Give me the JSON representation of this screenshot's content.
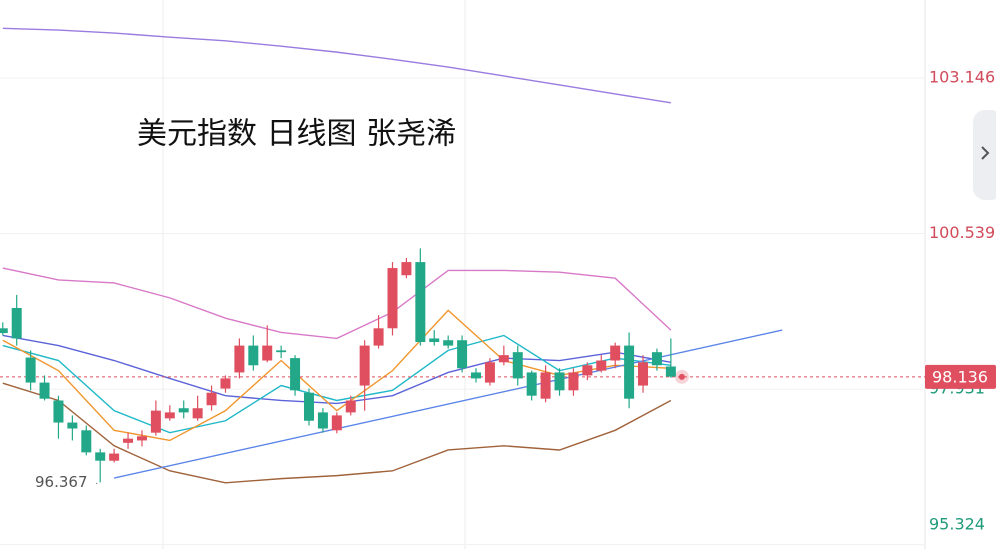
{
  "chart_data": {
    "type": "candlestick",
    "title": "美元指数 日线图 张尧浠",
    "ylim": [
      95.25,
      104.454
    ],
    "xlim": [
      -0.2,
      65.9
    ],
    "yticks": [
      103.146,
      100.539,
      97.931,
      95.324
    ],
    "last_price": 98.136,
    "low_label": 96.367,
    "up_color": "#e04f5f",
    "down_color": "#22a889",
    "open": [
      98.95,
      99.29,
      98.46,
      98.04,
      97.74,
      97.37,
      97.24,
      96.87,
      96.73,
      97.03,
      97.07,
      97.2,
      97.44,
      97.61,
      97.44,
      97.66,
      97.94,
      98.21,
      98.66,
      98.41,
      98.58,
      98.45,
      97.87,
      97.54,
      97.24,
      97.54,
      97.99,
      98.66,
      98.95,
      99.84,
      100.06,
      98.78,
      98.75,
      98.75,
      98.21,
      98.04,
      98.38,
      98.55,
      98.21,
      97.77,
      98.21,
      97.91,
      98.16,
      98.24,
      98.41,
      98.66,
      97.99,
      98.55,
      98.31
    ],
    "high": [
      99.05,
      99.51,
      98.58,
      98.16,
      97.82,
      97.49,
      97.32,
      96.93,
      96.93,
      97.2,
      97.24,
      97.74,
      97.66,
      97.74,
      97.82,
      97.99,
      98.16,
      98.78,
      98.83,
      99.0,
      98.66,
      98.5,
      97.94,
      97.61,
      97.54,
      97.82,
      98.75,
      99.17,
      100.06,
      100.13,
      100.29,
      98.92,
      98.83,
      98.83,
      98.28,
      98.45,
      98.66,
      98.66,
      98.24,
      98.33,
      98.28,
      98.28,
      98.38,
      98.5,
      98.71,
      98.88,
      98.5,
      98.61,
      98.78
    ],
    "low": [
      98.83,
      98.66,
      97.91,
      97.74,
      97.1,
      97.07,
      96.82,
      96.367,
      96.7,
      96.93,
      96.97,
      97.15,
      97.4,
      97.44,
      97.4,
      97.57,
      97.87,
      98.11,
      98.24,
      98.38,
      98.45,
      97.82,
      97.32,
      97.2,
      97.19,
      97.49,
      97.57,
      98.61,
      98.83,
      99.79,
      98.66,
      98.66,
      98.61,
      98.21,
      98.04,
      97.99,
      98.33,
      97.99,
      97.74,
      97.71,
      97.82,
      97.82,
      98.08,
      98.21,
      98.28,
      97.61,
      97.87,
      98.24,
      98.12
    ],
    "close": [
      98.87,
      98.78,
      98.04,
      97.77,
      97.37,
      97.27,
      96.87,
      96.73,
      96.85,
      97.1,
      97.14,
      97.57,
      97.54,
      97.54,
      97.61,
      97.87,
      98.11,
      98.66,
      98.33,
      98.66,
      98.55,
      97.91,
      97.4,
      97.27,
      97.49,
      97.74,
      98.66,
      98.95,
      99.96,
      100.06,
      98.72,
      98.72,
      98.66,
      98.28,
      98.11,
      98.38,
      98.5,
      98.11,
      97.82,
      98.21,
      97.91,
      98.21,
      98.33,
      98.41,
      98.66,
      97.77,
      98.38,
      98.33,
      98.14
    ],
    "overlays": [
      {
        "color": "#9a7be0",
        "x": [
          0,
          4,
          8,
          12,
          16,
          20,
          24,
          28,
          32,
          36,
          40,
          44,
          48
        ],
        "values": [
          103.98,
          103.95,
          103.9,
          103.83,
          103.77,
          103.68,
          103.58,
          103.46,
          103.33,
          103.18,
          103.03,
          102.88,
          102.73
        ]
      },
      {
        "color": "#d879c8",
        "x": [
          0,
          4,
          8,
          12,
          16,
          20,
          24,
          28,
          32,
          36,
          40,
          44,
          48
        ],
        "values": [
          99.96,
          99.76,
          99.71,
          99.46,
          99.12,
          98.88,
          98.78,
          99.22,
          99.92,
          99.92,
          99.89,
          99.79,
          98.92
        ]
      },
      {
        "color": "#a0623a",
        "x": [
          0,
          4,
          8,
          12,
          16,
          20,
          24,
          28,
          32,
          36,
          40,
          44,
          48
        ],
        "values": [
          98.03,
          97.74,
          96.98,
          96.56,
          96.36,
          96.43,
          96.48,
          96.56,
          96.91,
          96.98,
          96.91,
          97.24,
          97.74
        ]
      },
      {
        "color": "#5b63d8",
        "x": [
          0,
          4,
          8,
          12,
          16,
          20,
          24,
          28,
          32,
          36,
          40,
          44,
          48
        ],
        "values": [
          98.83,
          98.66,
          98.41,
          98.11,
          97.82,
          97.74,
          97.69,
          97.82,
          98.21,
          98.45,
          98.41,
          98.55,
          98.38
        ]
      },
      {
        "color": "#1fb8c8",
        "x": [
          0,
          4,
          8,
          12,
          16,
          20,
          24,
          28,
          32,
          36,
          40,
          44,
          48
        ],
        "values": [
          98.66,
          98.41,
          97.57,
          97.2,
          97.4,
          97.99,
          97.74,
          97.91,
          98.58,
          98.83,
          98.24,
          98.45,
          98.33
        ]
      },
      {
        "color": "#f0962e",
        "x": [
          0,
          4,
          8,
          12,
          16,
          20,
          24,
          28,
          32,
          36,
          40,
          44,
          48
        ],
        "values": [
          98.75,
          98.24,
          97.24,
          97.07,
          97.57,
          98.41,
          97.57,
          98.24,
          99.25,
          98.41,
          98.16,
          98.33,
          98.28
        ]
      },
      {
        "color": "#5b84e8",
        "x": [
          8,
          56
        ],
        "values": [
          96.44,
          98.92
        ]
      }
    ]
  }
}
